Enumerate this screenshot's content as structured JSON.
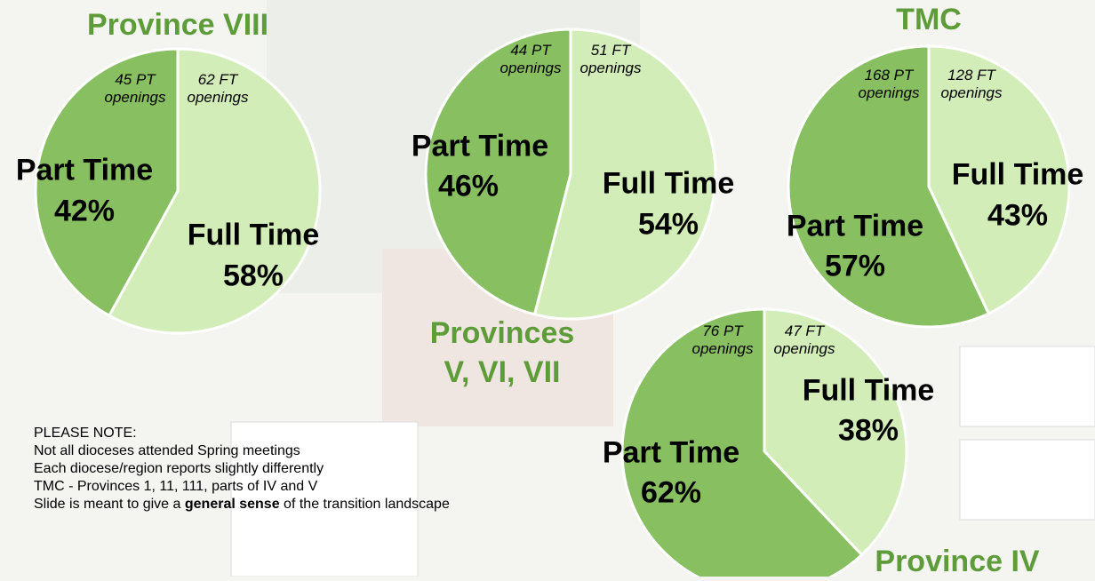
{
  "chart_data": [
    {
      "type": "pie",
      "title": "Province VIII",
      "categories": [
        "Part Time",
        "Full Time"
      ],
      "values": [
        42,
        58
      ],
      "value_labels": [
        "42%",
        "58%"
      ],
      "colors": [
        "#88bf61",
        "#d3edb9"
      ],
      "annotations": [
        "45 PT openings",
        "62 FT openings"
      ]
    },
    {
      "type": "pie",
      "title": "Provinces V, VI, VII",
      "categories": [
        "Part Time",
        "Full Time"
      ],
      "values": [
        46,
        54
      ],
      "value_labels": [
        "46%",
        "54%"
      ],
      "colors": [
        "#88bf61",
        "#d3edb9"
      ],
      "annotations": [
        "44 PT openings",
        "51 FT openings"
      ]
    },
    {
      "type": "pie",
      "title": "TMC",
      "categories": [
        "Part Time",
        "Full Time"
      ],
      "values": [
        57,
        43
      ],
      "value_labels": [
        "57%",
        "43%"
      ],
      "colors": [
        "#88bf61",
        "#d3edb9"
      ],
      "annotations": [
        "168 PT openings",
        "128 FT openings"
      ]
    },
    {
      "type": "pie",
      "title": "Province IV",
      "categories": [
        "Part Time",
        "Full Time"
      ],
      "values": [
        62,
        38
      ],
      "value_labels": [
        "62%",
        "38%"
      ],
      "colors": [
        "#88bf61",
        "#d3edb9"
      ],
      "annotations": [
        "76 PT openings",
        "47 FT openings"
      ]
    }
  ],
  "note": {
    "title": "PLEASE NOTE:",
    "lines": [
      "Not all dioceses attended Spring meetings",
      "Each diocese/region reports slightly differently",
      "TMC - Provinces 1, 11, 111, parts of IV and V"
    ],
    "last_line": [
      "Slide is meant to give a ",
      "general sense",
      " of the transition landscape"
    ]
  }
}
